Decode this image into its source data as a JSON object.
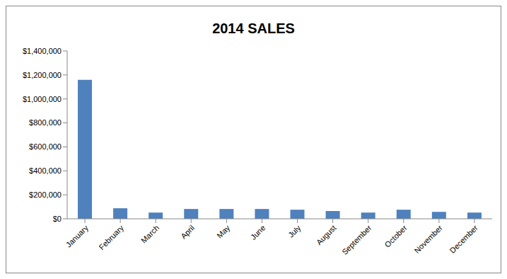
{
  "chart_data": {
    "type": "bar",
    "title": "2014 SALES",
    "categories": [
      "January",
      "February",
      "March",
      "April",
      "May",
      "June",
      "July",
      "August",
      "September",
      "October",
      "November",
      "December"
    ],
    "values": [
      1160000,
      88000,
      52000,
      82000,
      82000,
      82000,
      76000,
      65000,
      52000,
      76000,
      58000,
      52000
    ],
    "color": "#4f81bd",
    "ylim": [
      0,
      1400000
    ],
    "yticks": [
      {
        "value": 0,
        "label": "$0"
      },
      {
        "value": 200000,
        "label": "$200,000"
      },
      {
        "value": 400000,
        "label": "$400,000"
      },
      {
        "value": 600000,
        "label": "$600,000"
      },
      {
        "value": 800000,
        "label": "$800,000"
      },
      {
        "value": 1000000,
        "label": "$1,000,000"
      },
      {
        "value": 1200000,
        "label": "$1,200,000"
      },
      {
        "value": 1400000,
        "label": "$1,400,000"
      }
    ],
    "grid": false
  }
}
